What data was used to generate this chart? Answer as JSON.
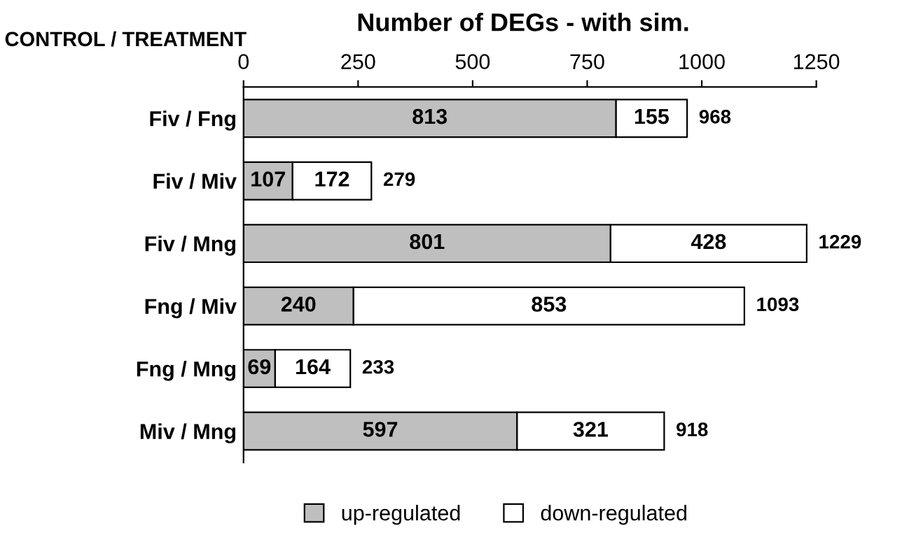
{
  "chart_data": {
    "type": "bar",
    "orientation": "horizontal",
    "stacked": true,
    "title": "Number of DEGs - with sim.",
    "annotations": [
      "CONTROL / TREATMENT"
    ],
    "categories": [
      "Fiv / Fng",
      "Fiv / Miv",
      "Fiv / Mng",
      "Fng / Miv",
      "Fng / Mng",
      "Miv / Mng"
    ],
    "series": [
      {
        "name": "up-regulated",
        "color": "#bfbfbf",
        "values": [
          813,
          107,
          801,
          240,
          69,
          597
        ]
      },
      {
        "name": "down-regulated",
        "color": "#ffffff",
        "values": [
          155,
          172,
          428,
          853,
          164,
          321
        ]
      }
    ],
    "totals": [
      "968",
      "279",
      "1229",
      "1093",
      "233",
      "918"
    ],
    "data_labels": true,
    "xlim": [
      0,
      1250
    ],
    "xticks": [
      0,
      250,
      500,
      750,
      1000,
      1250
    ],
    "grid": false,
    "legend": "bottom"
  }
}
